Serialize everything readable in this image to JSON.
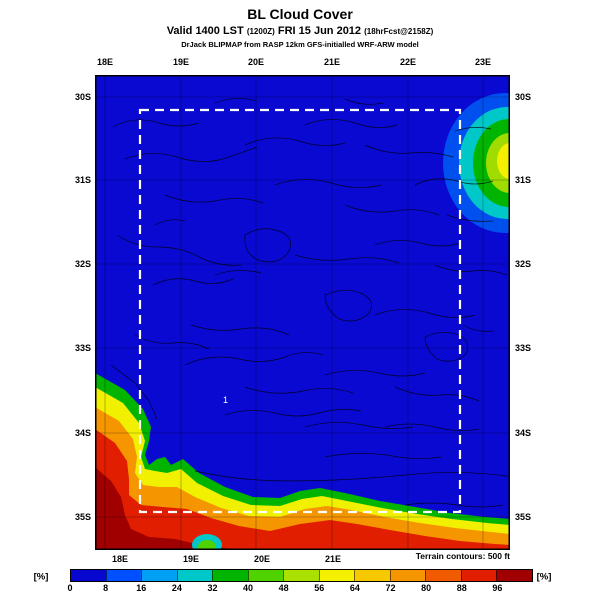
{
  "header": {
    "title": "BL Cloud Cover",
    "valid": {
      "prefix": "Valid 1400 LST",
      "init": "(1200Z)",
      "date": "FRI 15 Jun 2012",
      "fcst": "(18hrFcst@2158Z)"
    },
    "model_line": "DrJack BLIPMAP from RASP 12km GFS-initialled WRF-ARW model"
  },
  "map": {
    "top_lon_labels": [
      "18E",
      "19E",
      "20E",
      "21E",
      "22E",
      "23E"
    ],
    "bottom_lon_labels": [
      "18E",
      "19E",
      "20E",
      "21E"
    ],
    "left_lat_labels": [
      "30S",
      "31S",
      "32S",
      "33S",
      "34S",
      "35S"
    ],
    "right_lat_labels": [
      "30S",
      "31S",
      "32S",
      "33S",
      "34S",
      "35S"
    ],
    "marker_label": "1",
    "terrain_note": "Terrain contours: 500 ft",
    "base_color": "#0909d2"
  },
  "colorbar": {
    "unit_left": "[%]",
    "unit_right": "[%]",
    "tick_labels": [
      "0",
      "8",
      "16",
      "24",
      "32",
      "40",
      "48",
      "56",
      "64",
      "72",
      "80",
      "88",
      "96"
    ],
    "colors": [
      "#0707d0",
      "#0050ff",
      "#00a0f5",
      "#00c8c8",
      "#00b400",
      "#50d200",
      "#aae100",
      "#f5f000",
      "#f5c800",
      "#f59600",
      "#f05a00",
      "#e11e00",
      "#a00000"
    ]
  }
}
